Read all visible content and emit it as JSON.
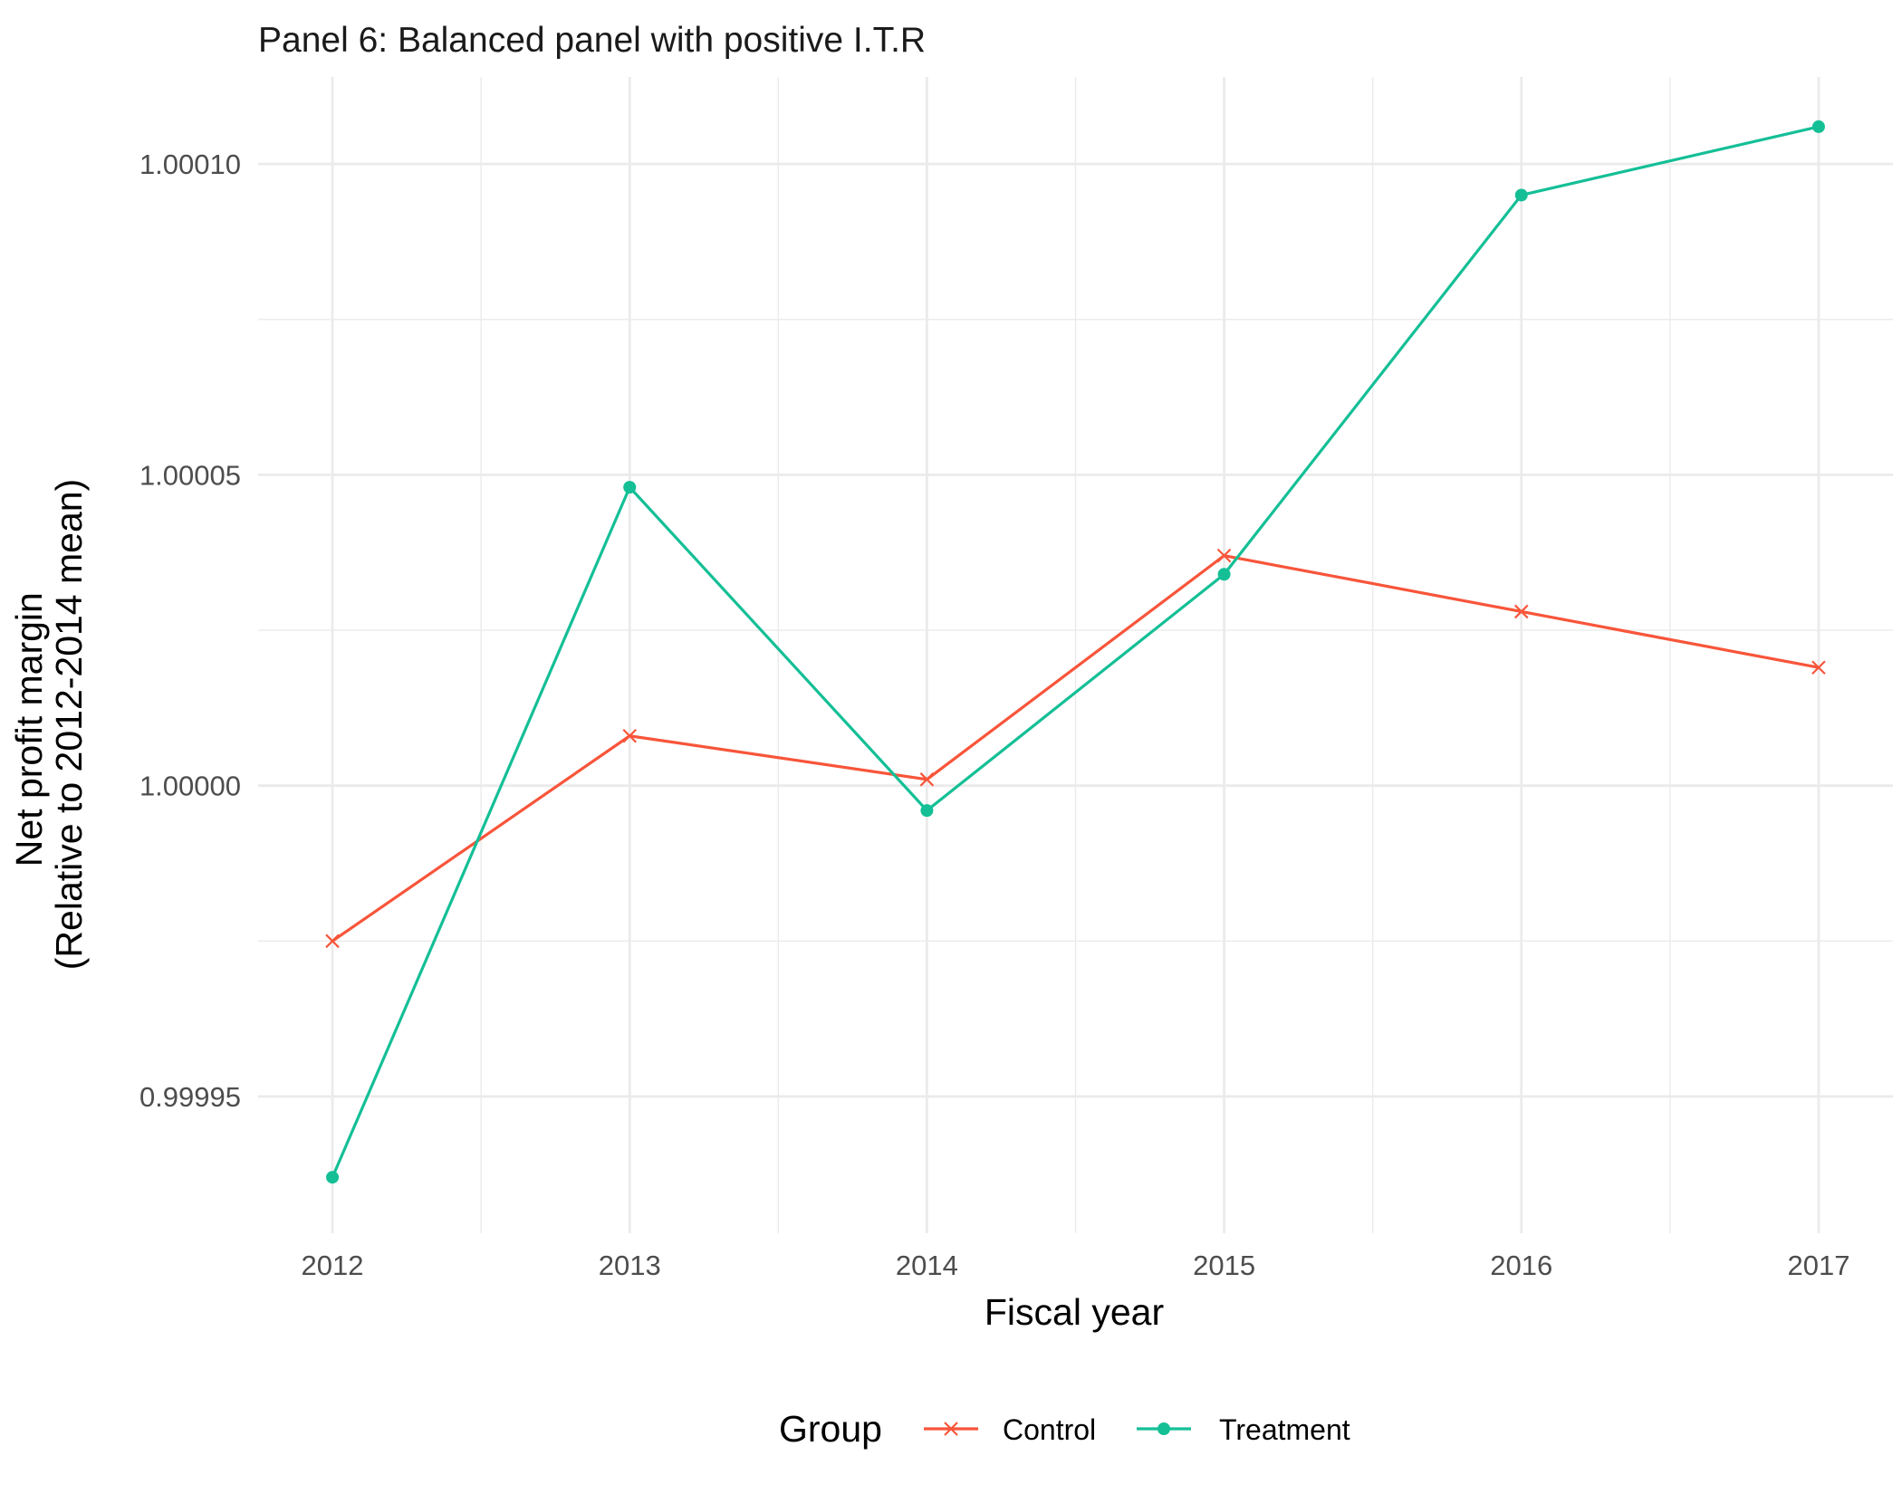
{
  "chart_data": {
    "type": "line",
    "title": "Panel 6: Balanced panel with positive I.T.R",
    "xlabel": "Fiscal year",
    "ylabel_lines": [
      "Net profit margin",
      "(Relative to 2012-2014 mean)"
    ],
    "x": [
      2012,
      2013,
      2014,
      2015,
      2016,
      2017
    ],
    "x_tick_labels": [
      "2012",
      "2013",
      "2014",
      "2015",
      "2016",
      "2017"
    ],
    "xlim": [
      2011.75,
      2017.25
    ],
    "y_ticks": [
      0.99995,
      1.0,
      1.00005,
      1.0001
    ],
    "y_tick_labels": [
      "0.99995",
      "1.00000",
      "1.00005",
      "1.00010"
    ],
    "ylim": [
      0.999928,
      1.000114
    ],
    "grid": true,
    "legend_title": "Group",
    "legend_position": "bottom",
    "series": [
      {
        "name": "Control",
        "color": "#F8553A",
        "marker": "x",
        "values": [
          0.999975,
          1.000008,
          1.000001,
          1.000037,
          1.000028,
          1.000019
        ]
      },
      {
        "name": "Treatment",
        "color": "#14BF96",
        "marker": "dot",
        "values": [
          0.999937,
          1.000048,
          0.999996,
          1.000034,
          1.000095,
          1.000106
        ]
      }
    ]
  }
}
